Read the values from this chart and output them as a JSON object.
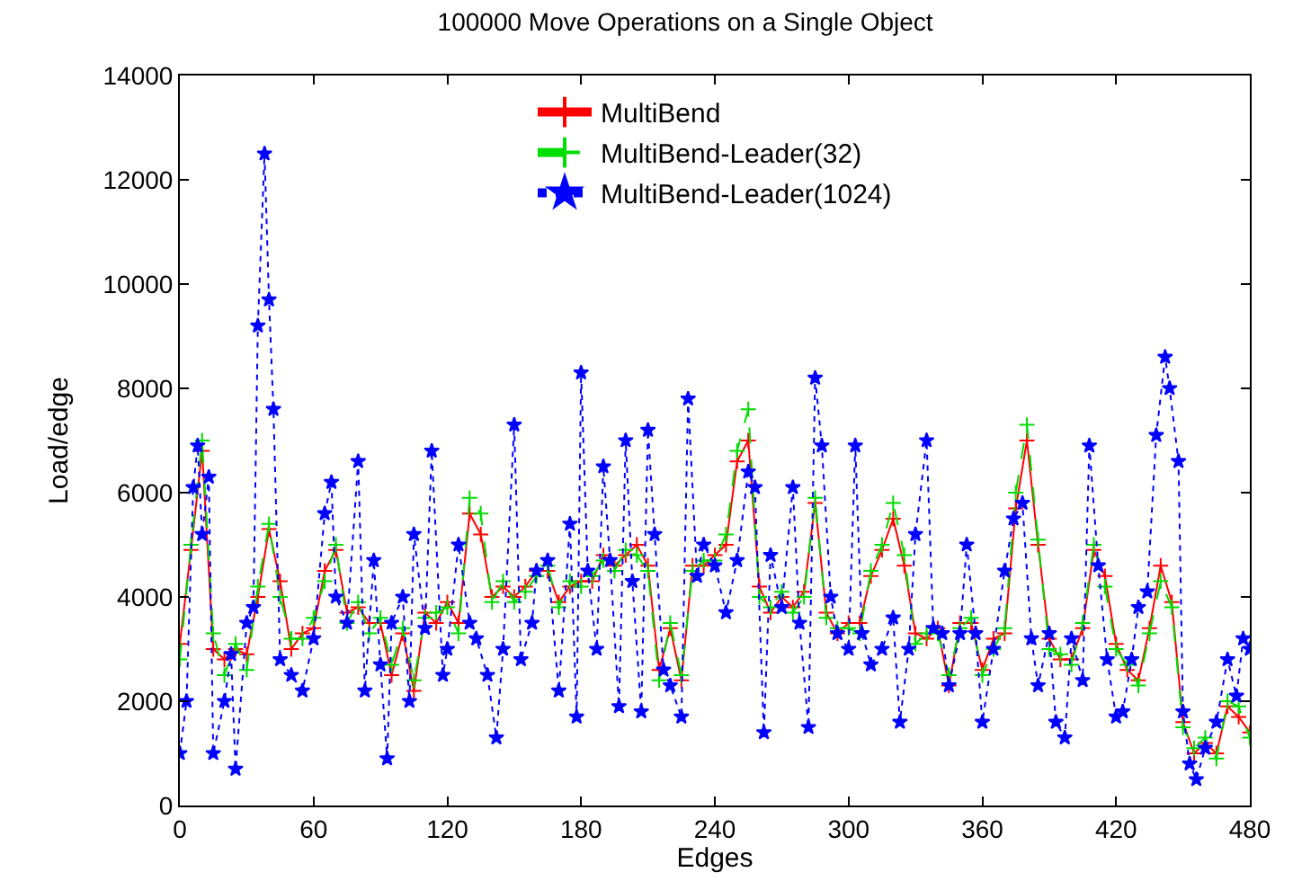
{
  "chart_data": {
    "type": "line",
    "title": "100000 Move Operations on a Single Object",
    "xlabel": "Edges",
    "ylabel": "Load/edge",
    "xlim": [
      0,
      480
    ],
    "xticks": [
      0,
      60,
      120,
      180,
      240,
      300,
      360,
      420,
      480
    ],
    "ylim": [
      0,
      14000
    ],
    "yticks": [
      0,
      2000,
      4000,
      6000,
      8000,
      10000,
      12000,
      14000
    ],
    "legend": "top",
    "series": [
      {
        "name": "MultiBend",
        "color": "#ff0000",
        "marker": "cross",
        "line_style": "solid",
        "x": [
          0,
          5,
          10,
          15,
          20,
          25,
          30,
          35,
          40,
          45,
          50,
          55,
          60,
          65,
          70,
          75,
          80,
          85,
          90,
          95,
          100,
          105,
          110,
          115,
          120,
          125,
          130,
          135,
          140,
          145,
          150,
          155,
          160,
          165,
          170,
          175,
          180,
          185,
          190,
          195,
          200,
          205,
          210,
          215,
          220,
          225,
          230,
          235,
          240,
          245,
          250,
          255,
          260,
          265,
          270,
          275,
          280,
          285,
          290,
          295,
          300,
          305,
          310,
          315,
          320,
          325,
          330,
          335,
          340,
          345,
          350,
          355,
          360,
          365,
          370,
          375,
          380,
          385,
          390,
          395,
          400,
          405,
          410,
          415,
          420,
          425,
          430,
          435,
          440,
          445,
          450,
          455,
          460,
          465,
          470,
          475,
          480
        ],
        "values": [
          3100,
          4900,
          6800,
          3000,
          2800,
          3000,
          2900,
          4000,
          5300,
          4300,
          3000,
          3300,
          3400,
          4500,
          4900,
          3700,
          3800,
          3500,
          3500,
          2500,
          3300,
          2200,
          3700,
          3500,
          3900,
          3500,
          5600,
          5200,
          4000,
          4200,
          4000,
          4200,
          4500,
          4500,
          3900,
          4200,
          4300,
          4300,
          4800,
          4600,
          4800,
          5000,
          4600,
          2600,
          3400,
          2400,
          4600,
          4600,
          4800,
          5000,
          6600,
          7000,
          4200,
          3700,
          4000,
          3800,
          4100,
          5800,
          3700,
          3300,
          3500,
          3500,
          4400,
          4900,
          5500,
          4600,
          3300,
          3200,
          3400,
          2300,
          3500,
          3500,
          2600,
          3200,
          3300,
          5700,
          7000,
          5000,
          3200,
          2800,
          2800,
          3400,
          4900,
          4400,
          3100,
          2600,
          2400,
          3400,
          4600,
          3900,
          1600,
          1000,
          1200,
          1000,
          1900,
          1700,
          1400
        ]
      },
      {
        "name": "MultiBend-Leader(32)",
        "color": "#00dd00",
        "marker": "cross",
        "line_style": "dashed",
        "x": [
          0,
          5,
          10,
          15,
          20,
          25,
          30,
          35,
          40,
          45,
          50,
          55,
          60,
          65,
          70,
          75,
          80,
          85,
          90,
          95,
          100,
          105,
          110,
          115,
          120,
          125,
          130,
          135,
          140,
          145,
          150,
          155,
          160,
          165,
          170,
          175,
          180,
          185,
          190,
          195,
          200,
          205,
          210,
          215,
          220,
          225,
          230,
          235,
          240,
          245,
          250,
          255,
          260,
          265,
          270,
          275,
          280,
          285,
          290,
          295,
          300,
          305,
          310,
          315,
          320,
          325,
          330,
          335,
          340,
          345,
          350,
          355,
          360,
          365,
          370,
          375,
          380,
          385,
          390,
          395,
          400,
          405,
          410,
          415,
          420,
          425,
          430,
          435,
          440,
          445,
          450,
          455,
          460,
          465,
          470,
          475,
          480
        ],
        "values": [
          2800,
          5000,
          7000,
          3300,
          2500,
          3100,
          2600,
          4200,
          5400,
          4000,
          3200,
          3200,
          3600,
          4300,
          5000,
          3500,
          3900,
          3300,
          3600,
          2700,
          3400,
          2400,
          3600,
          3700,
          3800,
          3300,
          5900,
          5600,
          3900,
          4300,
          3900,
          4100,
          4400,
          4600,
          3800,
          4300,
          4200,
          4400,
          4700,
          4500,
          4900,
          4800,
          4500,
          2400,
          3500,
          2500,
          4500,
          4700,
          4700,
          5200,
          6800,
          7600,
          4000,
          3800,
          4100,
          3700,
          4000,
          5900,
          3600,
          3400,
          3400,
          3300,
          4500,
          5000,
          5800,
          4800,
          3100,
          3300,
          3300,
          2500,
          3400,
          3600,
          2500,
          3000,
          3400,
          6000,
          7300,
          5100,
          3000,
          2900,
          2700,
          3500,
          5000,
          4200,
          3000,
          2700,
          2300,
          3300,
          4300,
          3800,
          1500,
          1100,
          1300,
          900,
          2000,
          1900,
          1300
        ]
      },
      {
        "name": "MultiBend-Leader(1024)",
        "color": "#0000ff",
        "marker": "star",
        "line_style": "dotted",
        "x": [
          0,
          3,
          6,
          8,
          10,
          13,
          15,
          20,
          23,
          25,
          30,
          33,
          35,
          38,
          40,
          42,
          45,
          50,
          55,
          60,
          65,
          68,
          70,
          75,
          80,
          83,
          87,
          90,
          93,
          95,
          100,
          103,
          105,
          110,
          113,
          118,
          120,
          125,
          130,
          133,
          138,
          142,
          145,
          150,
          153,
          158,
          160,
          165,
          170,
          175,
          178,
          180,
          183,
          187,
          190,
          193,
          197,
          200,
          203,
          207,
          210,
          213,
          217,
          220,
          225,
          228,
          232,
          235,
          240,
          245,
          250,
          255,
          258,
          262,
          265,
          270,
          275,
          278,
          282,
          285,
          288,
          292,
          295,
          300,
          303,
          306,
          310,
          315,
          320,
          323,
          327,
          330,
          335,
          338,
          342,
          345,
          350,
          353,
          357,
          360,
          365,
          370,
          374,
          378,
          382,
          385,
          390,
          393,
          397,
          400,
          405,
          408,
          412,
          416,
          420,
          423,
          427,
          430,
          434,
          438,
          442,
          444,
          448,
          450,
          453,
          456,
          460,
          465,
          470,
          474,
          477,
          480
        ],
        "values": [
          1000,
          2000,
          6100,
          6900,
          5200,
          6300,
          1000,
          2000,
          2900,
          700,
          3500,
          3800,
          9200,
          12500,
          9700,
          7600,
          2800,
          2500,
          2200,
          3200,
          5600,
          6200,
          4000,
          3500,
          6600,
          2200,
          4700,
          2700,
          900,
          3500,
          4000,
          2000,
          5200,
          3400,
          6800,
          2500,
          3000,
          5000,
          3500,
          3200,
          2500,
          1300,
          3000,
          7300,
          2800,
          3500,
          4500,
          4700,
          2200,
          5400,
          1700,
          8300,
          4500,
          3000,
          6500,
          4700,
          1900,
          7000,
          4300,
          1800,
          7200,
          5200,
          2600,
          2300,
          1700,
          7800,
          4400,
          5000,
          4600,
          3700,
          4700,
          6400,
          6100,
          1400,
          4800,
          3800,
          6100,
          3500,
          1500,
          8200,
          6900,
          4000,
          3300,
          3000,
          6900,
          3300,
          2700,
          3000,
          3600,
          1600,
          3000,
          5200,
          7000,
          3400,
          3300,
          2300,
          3300,
          5000,
          3300,
          1600,
          3000,
          4500,
          5500,
          5800,
          3200,
          2300,
          3300,
          1600,
          1300,
          3200,
          2400,
          6900,
          4600,
          2800,
          1700,
          1800,
          2800,
          3800,
          4100,
          7100,
          8600,
          8000,
          6600,
          1800,
          800,
          500,
          1100,
          1600,
          2800,
          2100,
          3200,
          3000
        ]
      }
    ]
  }
}
